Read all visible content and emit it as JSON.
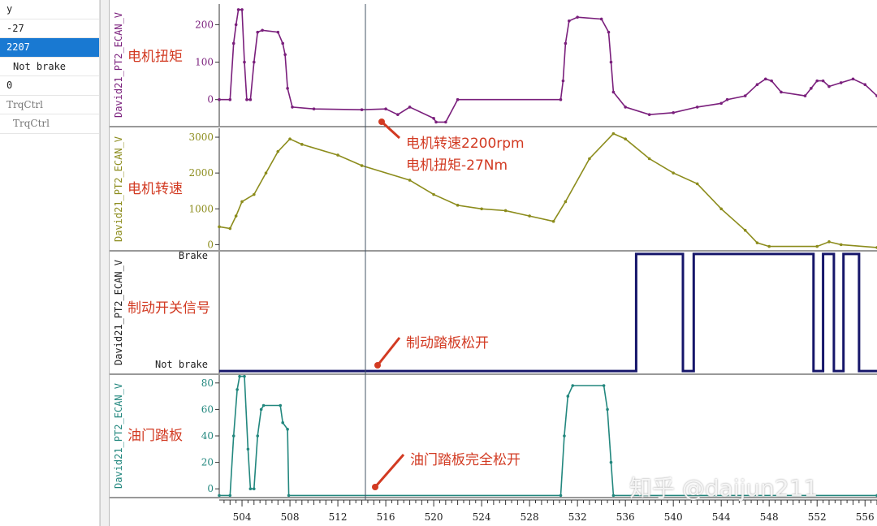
{
  "left_panel": {
    "rows": [
      "y",
      "-27",
      "2207",
      "Not brake",
      "0",
      "TrqCtrl",
      "TrqCtrl"
    ],
    "selected_index": 2
  },
  "watermark": "知乎 @daijun211",
  "colors": {
    "torque": "#7a1f7c",
    "speed": "#8c8c1c",
    "brake": "#16166a",
    "throttle": "#22877e",
    "annotation": "#d23a22",
    "cursor": "#445566"
  },
  "cursor_x": 514.3,
  "chart_data": [
    {
      "type": "line",
      "ylabel": "David21_PT2_ECAN_V",
      "annotation": "电机扭矩",
      "ylim": [
        -70,
        255
      ],
      "yticks": [
        0,
        100,
        200
      ],
      "xlim": [
        502.1,
        557
      ],
      "series": [
        {
          "x": [
            502.1,
            503,
            503.3,
            503.5,
            503.7,
            504,
            504.2,
            504.4,
            504.7,
            505,
            505.3,
            505.7,
            507,
            507.4,
            507.6,
            507.8,
            508.2,
            510,
            514,
            516,
            517,
            518,
            520,
            520.2,
            521,
            522,
            530.6,
            530.8,
            531,
            531.3,
            532,
            534,
            534.6,
            534.8,
            535,
            536,
            538,
            540,
            542,
            544,
            544.5,
            546,
            547,
            547.7,
            548.2,
            549,
            551,
            551.5,
            552,
            552.5,
            553,
            554,
            555,
            556,
            557
          ],
          "y": [
            0,
            0,
            150,
            200,
            240,
            240,
            100,
            0,
            0,
            100,
            180,
            185,
            180,
            150,
            120,
            30,
            -20,
            -25,
            -27,
            -25,
            -40,
            -20,
            -50,
            -60,
            -60,
            0,
            0,
            50,
            150,
            210,
            220,
            215,
            180,
            100,
            20,
            -20,
            -40,
            -35,
            -20,
            -10,
            0,
            10,
            40,
            55,
            50,
            20,
            10,
            30,
            50,
            50,
            35,
            45,
            55,
            40,
            10
          ]
        }
      ]
    },
    {
      "type": "line",
      "ylabel": "David21_PT2_ECAN_V",
      "annotation": "电机转速",
      "ylim": [
        -150,
        3250
      ],
      "yticks": [
        0,
        1000,
        2000,
        3000
      ],
      "xlim": [
        502.1,
        557
      ],
      "series": [
        {
          "x": [
            502.1,
            503,
            503.5,
            504,
            505,
            506,
            507,
            508,
            509,
            512,
            514,
            518,
            520,
            522,
            524,
            526,
            528,
            530,
            531,
            533,
            535,
            536,
            538,
            540,
            542,
            544,
            546,
            547,
            548,
            552,
            553,
            554,
            557
          ],
          "y": [
            500,
            450,
            800,
            1200,
            1400,
            2000,
            2600,
            2950,
            2800,
            2500,
            2207,
            1800,
            1400,
            1100,
            1000,
            950,
            800,
            650,
            1200,
            2400,
            3100,
            2950,
            2400,
            2000,
            1700,
            1000,
            400,
            50,
            -50,
            -50,
            80,
            0,
            -80
          ]
        }
      ]
    },
    {
      "type": "line",
      "ylabel": "David21_PT2_ECAN_V",
      "annotation": "制动开关信号",
      "ytick_labels": [
        "Not brake",
        "Brake"
      ],
      "xlim": [
        502.1,
        557
      ],
      "series": [
        {
          "x": [
            502.1,
            536.9,
            536.9,
            540.8,
            540.8,
            541.7,
            541.7,
            551.7,
            551.7,
            552.5,
            552.5,
            553.4,
            553.4,
            554.2,
            554.2,
            555.5,
            555.5,
            557
          ],
          "y": [
            0,
            0,
            1,
            1,
            0,
            0,
            1,
            1,
            0,
            0,
            1,
            1,
            0,
            0,
            1,
            1,
            0,
            0
          ]
        }
      ]
    },
    {
      "type": "line",
      "ylabel": "David21_PT2_ECAN_V",
      "annotation": "油门踏板",
      "ylim": [
        -6,
        86
      ],
      "yticks": [
        0,
        20,
        40,
        60,
        80
      ],
      "xlim": [
        502.1,
        557
      ],
      "xticks": [
        504,
        508,
        512,
        516,
        520,
        524,
        528,
        532,
        536,
        540,
        544,
        548,
        552,
        556
      ],
      "series": [
        {
          "x": [
            502.1,
            503,
            503.3,
            503.6,
            503.8,
            504.2,
            504.5,
            504.7,
            505,
            505.3,
            505.6,
            505.8,
            507.2,
            507.4,
            507.8,
            507.9,
            530.6,
            530.9,
            531.2,
            531.6,
            534.2,
            534.5,
            534.8,
            535,
            557
          ],
          "y": [
            -5,
            -5,
            40,
            75,
            85,
            85,
            30,
            0,
            0,
            40,
            60,
            63,
            63,
            50,
            45,
            -5,
            -5,
            40,
            70,
            78,
            78,
            60,
            20,
            -5,
            -5
          ]
        }
      ]
    }
  ],
  "callouts": [
    {
      "lines": [
        "电机转速2200rpm",
        "电机扭矩-27Nm"
      ]
    },
    {
      "lines": [
        "制动踏板松开"
      ]
    },
    {
      "lines": [
        "油门踏板完全松开"
      ]
    }
  ]
}
